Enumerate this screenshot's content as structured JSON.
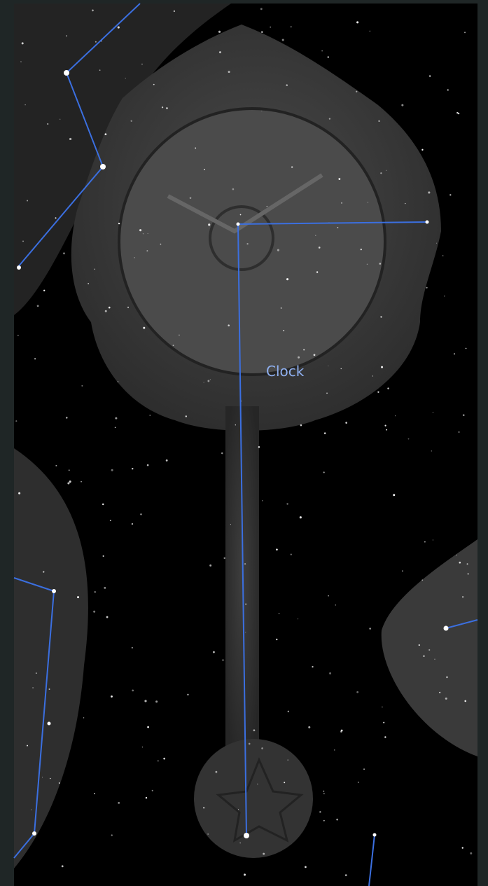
{
  "label": "Clock"
}
